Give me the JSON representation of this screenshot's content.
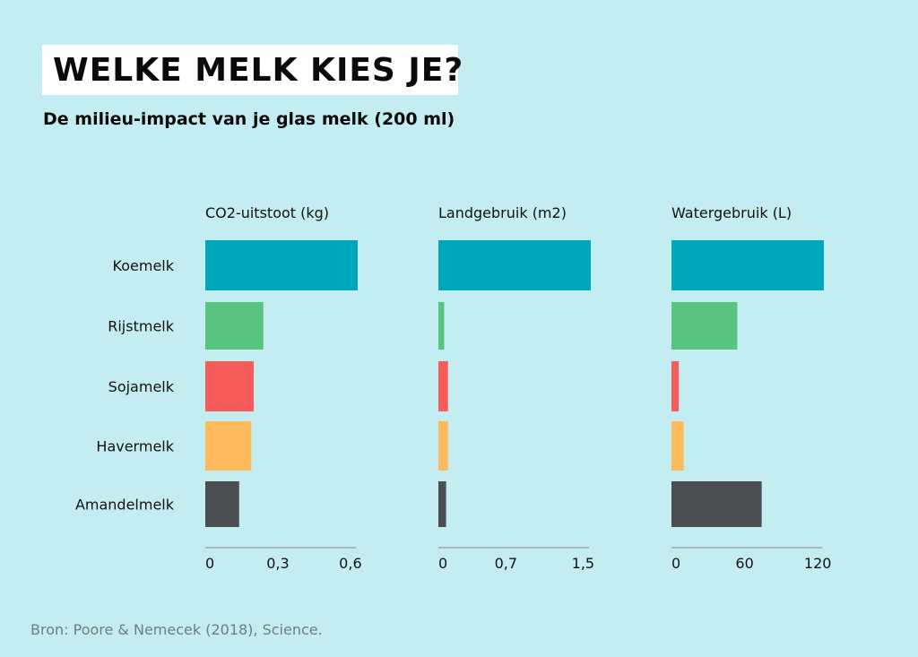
{
  "title": "WELKE MELK KIES JE?",
  "subtitle": "De milieu-impact van je glas melk (200 ml)",
  "source": "Bron: Poore & Nemecek (2018), Science.",
  "chart_data": {
    "type": "bar",
    "orientation": "horizontal",
    "categories": [
      "Koemelk",
      "Rijstmelk",
      "Sojamelk",
      "Havermelk",
      "Amandelmelk"
    ],
    "category_colors": [
      "#00a7b8",
      "#59c482",
      "#f65d5a",
      "#fdb95c",
      "#4b4f51"
    ],
    "panels": [
      {
        "label": "CO2-uitstoot (kg)",
        "values": [
          0.63,
          0.24,
          0.2,
          0.19,
          0.14
        ],
        "xlim": [
          0,
          0.63
        ],
        "ticks": [
          0,
          0.3,
          0.6
        ],
        "tick_labels": [
          "0",
          "0,3",
          "0,6"
        ]
      },
      {
        "label": "Landgebruik (m2)",
        "values": [
          1.58,
          0.06,
          0.1,
          0.1,
          0.08
        ],
        "xlim": [
          0,
          1.58
        ],
        "ticks": [
          0,
          0.7,
          1.5
        ],
        "tick_labels": [
          "0",
          "0,7",
          "1,5"
        ]
      },
      {
        "label": "Watergebruik (L)",
        "values": [
          125,
          54,
          6,
          10,
          74
        ],
        "xlim": [
          0,
          125
        ],
        "ticks": [
          0,
          60,
          120
        ],
        "tick_labels": [
          "0",
          "60",
          "120"
        ]
      }
    ],
    "grid": false,
    "legend": "none"
  }
}
